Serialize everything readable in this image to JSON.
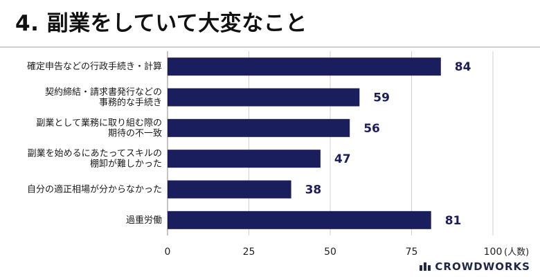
{
  "title": "4. 副業をしていて大変なこと",
  "logo_text": "CROWDWORKS",
  "colors": {
    "bar": "#1b1e5c",
    "grid": "#d0d0d0",
    "value_text": "#1b1e5c"
  },
  "chart_data": {
    "type": "bar",
    "orientation": "horizontal",
    "categories": [
      [
        "確定申告などの行政手続き・計算"
      ],
      [
        "契約締結・請求書発行などの",
        "事務的な手続き"
      ],
      [
        "副業として業務に取り組む際の",
        "期待の不一致"
      ],
      [
        "副業を始めるにあたってスキルの",
        "棚卸が難しかった"
      ],
      [
        "自分の適正相場が分からなかった"
      ],
      [
        "過重労働"
      ]
    ],
    "values": [
      84,
      59,
      56,
      47,
      38,
      81
    ],
    "xlim": [
      0,
      100
    ],
    "xticks": [
      "0",
      "25",
      "50",
      "75",
      "100"
    ],
    "unit_label": "(人数)",
    "grid": true
  }
}
